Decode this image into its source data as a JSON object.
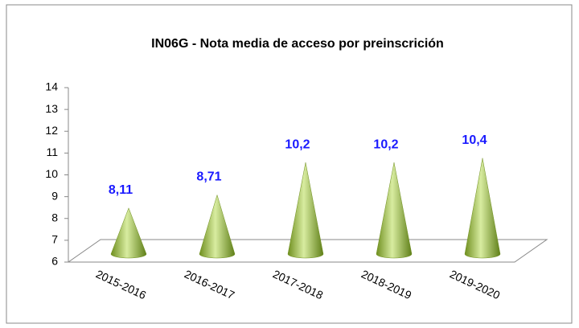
{
  "chart_data": {
    "type": "cone",
    "title": "IN06G - Nota media de acceso por preinscrición",
    "categories": [
      "2015-2016",
      "2016-2017",
      "2017-2018",
      "2018-2019",
      "2019-2020"
    ],
    "values": [
      8.11,
      8.71,
      10.2,
      10.2,
      10.4
    ],
    "value_labels": [
      "8,11",
      "8,71",
      "10,2",
      "10,2",
      "10,4"
    ],
    "color": "#9bbb3c",
    "ylim": [
      6,
      14
    ],
    "yticks": [
      6,
      7,
      8,
      9,
      10,
      11,
      12,
      13,
      14
    ]
  }
}
